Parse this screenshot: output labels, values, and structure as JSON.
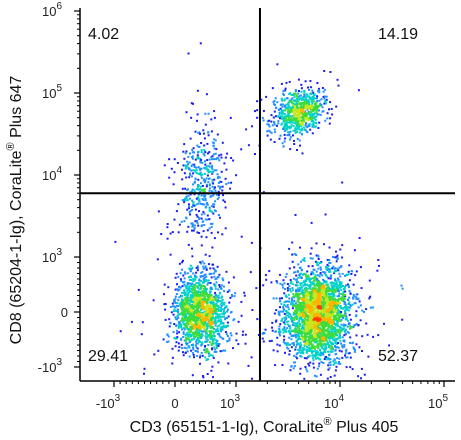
{
  "chart_data": {
    "type": "scatter",
    "plot_style": "flow cytometry density dot plot with quadrant gates",
    "xlabel": {
      "main": "CD3 (65151-1-Ig), CoraLite",
      "sup": "®",
      "tail": " Plus 405"
    },
    "ylabel": {
      "main": "CD8 (65204-1-Ig), CoraLite",
      "sup": "®",
      "tail": " Plus 647"
    },
    "x_axis": {
      "scale": "biexponential",
      "ticks": [
        {
          "value": -1000,
          "base": "-10",
          "exp": "3"
        },
        {
          "value": 0,
          "base": "0",
          "exp": ""
        },
        {
          "value": 1000,
          "base": "10",
          "exp": "3"
        },
        {
          "value": 10000,
          "base": "10",
          "exp": "4"
        },
        {
          "value": 100000,
          "base": "10",
          "exp": "5"
        }
      ]
    },
    "y_axis": {
      "scale": "biexponential",
      "ticks": [
        {
          "value": -1000,
          "base": "-10",
          "exp": "3"
        },
        {
          "value": 0,
          "base": "0",
          "exp": ""
        },
        {
          "value": 1000,
          "base": "10",
          "exp": "3"
        },
        {
          "value": 10000,
          "base": "10",
          "exp": "4"
        },
        {
          "value": 100000,
          "base": "10",
          "exp": "5"
        },
        {
          "value": 1000000,
          "base": "10",
          "exp": "6"
        }
      ]
    },
    "quadrant_gate": {
      "x": 1700,
      "y": 6000
    },
    "quadrants": [
      {
        "position": "top-left",
        "percent": "4.02"
      },
      {
        "position": "top-right",
        "percent": "14.19"
      },
      {
        "position": "bottom-left",
        "percent": "29.41"
      },
      {
        "position": "bottom-right",
        "percent": "52.37"
      }
    ],
    "populations": [
      {
        "description": "CD3- CD8- cells",
        "x_center": 400,
        "y_center": 0,
        "fraction": 0.2941
      },
      {
        "description": "CD3+ CD8- cells",
        "x_center": 6000,
        "y_center": 0,
        "fraction": 0.5237
      },
      {
        "description": "CD3+ CD8+ cells",
        "x_center": 4000,
        "y_center": 60000,
        "fraction": 0.1419
      },
      {
        "description": "CD3- CD8+ cells",
        "x_center": 500,
        "y_center": 10000,
        "fraction": 0.0402
      }
    ],
    "density_colors": [
      "#1c1cf0",
      "#1e90ff",
      "#00d2c8",
      "#3cdc3c",
      "#c8e61e",
      "#ffb400",
      "#ff3c00"
    ],
    "grid": false,
    "legend": "none"
  }
}
